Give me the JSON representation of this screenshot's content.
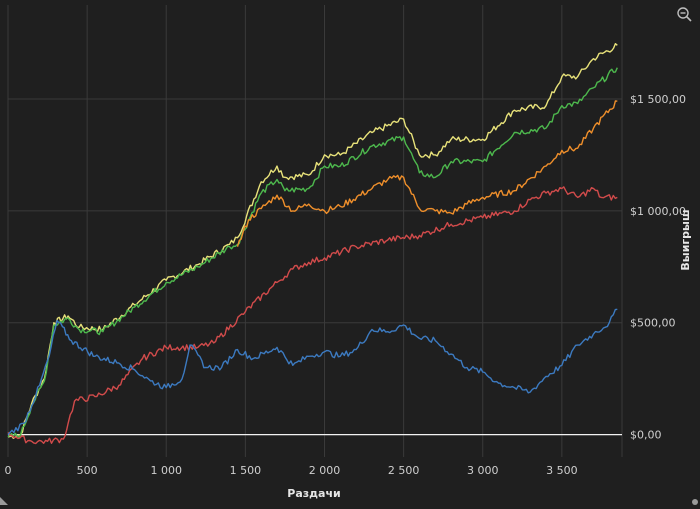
{
  "chart_data": {
    "type": "line",
    "xlabel": "Раздачи",
    "ylabel": "Выигрыш",
    "xlim": [
      0,
      3880
    ],
    "ylim": [
      -100,
      1920
    ],
    "x_ticks": [
      0,
      500,
      1000,
      1500,
      2000,
      2500,
      3000,
      3500
    ],
    "x_tick_labels": [
      "0",
      "500",
      "1 000",
      "1 500",
      "2 000",
      "2 500",
      "3 000",
      "3 500"
    ],
    "y_ticks": [
      0,
      500,
      1000,
      1500
    ],
    "y_tick_labels": [
      "$0,00",
      "$500,00",
      "$1 000,00",
      "$1 500,00"
    ],
    "grid": true,
    "zero_line": true,
    "series": [
      {
        "color": "#e8e27a",
        "values": [
          [
            0,
            -10
          ],
          [
            80,
            0
          ],
          [
            150,
            140
          ],
          [
            230,
            250
          ],
          [
            290,
            500
          ],
          [
            380,
            530
          ],
          [
            450,
            480
          ],
          [
            600,
            470
          ],
          [
            800,
            580
          ],
          [
            1000,
            690
          ],
          [
            1200,
            760
          ],
          [
            1400,
            850
          ],
          [
            1450,
            880
          ],
          [
            1600,
            1130
          ],
          [
            1700,
            1200
          ],
          [
            1750,
            1150
          ],
          [
            1900,
            1160
          ],
          [
            2000,
            1250
          ],
          [
            2100,
            1250
          ],
          [
            2300,
            1350
          ],
          [
            2500,
            1410
          ],
          [
            2600,
            1250
          ],
          [
            2700,
            1250
          ],
          [
            2800,
            1320
          ],
          [
            3000,
            1320
          ],
          [
            3200,
            1450
          ],
          [
            3400,
            1470
          ],
          [
            3500,
            1600
          ],
          [
            3600,
            1600
          ],
          [
            3700,
            1680
          ],
          [
            3850,
            1740
          ]
        ]
      },
      {
        "color": "#4db84d",
        "values": [
          [
            0,
            -10
          ],
          [
            80,
            0
          ],
          [
            150,
            130
          ],
          [
            230,
            240
          ],
          [
            290,
            490
          ],
          [
            380,
            520
          ],
          [
            450,
            470
          ],
          [
            600,
            460
          ],
          [
            800,
            570
          ],
          [
            1000,
            680
          ],
          [
            1200,
            750
          ],
          [
            1400,
            840
          ],
          [
            1450,
            850
          ],
          [
            1600,
            1080
          ],
          [
            1700,
            1140
          ],
          [
            1750,
            1090
          ],
          [
            1900,
            1100
          ],
          [
            2000,
            1200
          ],
          [
            2100,
            1200
          ],
          [
            2300,
            1290
          ],
          [
            2500,
            1330
          ],
          [
            2600,
            1170
          ],
          [
            2700,
            1150
          ],
          [
            2800,
            1220
          ],
          [
            3000,
            1220
          ],
          [
            3200,
            1350
          ],
          [
            3400,
            1370
          ],
          [
            3500,
            1470
          ],
          [
            3600,
            1480
          ],
          [
            3700,
            1550
          ],
          [
            3850,
            1640
          ]
        ]
      },
      {
        "color": "#ef8f2b",
        "values": [
          [
            1450,
            840
          ],
          [
            1520,
            960
          ],
          [
            1600,
            1010
          ],
          [
            1700,
            1070
          ],
          [
            1800,
            1000
          ],
          [
            1900,
            1030
          ],
          [
            2000,
            1000
          ],
          [
            2100,
            1020
          ],
          [
            2300,
            1100
          ],
          [
            2400,
            1140
          ],
          [
            2500,
            1150
          ],
          [
            2600,
            1010
          ],
          [
            2700,
            1000
          ],
          [
            2800,
            990
          ],
          [
            2900,
            1030
          ],
          [
            3000,
            1060
          ],
          [
            3200,
            1090
          ],
          [
            3400,
            1200
          ],
          [
            3500,
            1270
          ],
          [
            3600,
            1280
          ],
          [
            3700,
            1370
          ],
          [
            3850,
            1490
          ]
        ]
      },
      {
        "color": "#d14b4b",
        "values": [
          [
            0,
            10
          ],
          [
            50,
            -10
          ],
          [
            150,
            -30
          ],
          [
            250,
            -30
          ],
          [
            350,
            -20
          ],
          [
            380,
            50
          ],
          [
            420,
            150
          ],
          [
            550,
            170
          ],
          [
            700,
            220
          ],
          [
            850,
            340
          ],
          [
            1000,
            390
          ],
          [
            1200,
            390
          ],
          [
            1300,
            410
          ],
          [
            1500,
            550
          ],
          [
            1700,
            680
          ],
          [
            1800,
            740
          ],
          [
            1900,
            770
          ],
          [
            2000,
            790
          ],
          [
            2200,
            840
          ],
          [
            2400,
            870
          ],
          [
            2600,
            890
          ],
          [
            2800,
            940
          ],
          [
            3000,
            970
          ],
          [
            3200,
            1000
          ],
          [
            3300,
            1050
          ],
          [
            3400,
            1080
          ],
          [
            3500,
            1100
          ],
          [
            3600,
            1060
          ],
          [
            3700,
            1100
          ],
          [
            3750,
            1060
          ],
          [
            3850,
            1060
          ]
        ]
      },
      {
        "color": "#3c7ac0",
        "values": [
          [
            0,
            0
          ],
          [
            100,
            50
          ],
          [
            200,
            220
          ],
          [
            260,
            350
          ],
          [
            310,
            510
          ],
          [
            400,
            420
          ],
          [
            550,
            350
          ],
          [
            700,
            320
          ],
          [
            800,
            290
          ],
          [
            900,
            240
          ],
          [
            1000,
            210
          ],
          [
            1100,
            250
          ],
          [
            1150,
            400
          ],
          [
            1250,
            300
          ],
          [
            1350,
            300
          ],
          [
            1450,
            380
          ],
          [
            1550,
            340
          ],
          [
            1700,
            390
          ],
          [
            1800,
            310
          ],
          [
            1900,
            350
          ],
          [
            2000,
            370
          ],
          [
            2100,
            350
          ],
          [
            2200,
            380
          ],
          [
            2300,
            470
          ],
          [
            2400,
            460
          ],
          [
            2500,
            490
          ],
          [
            2600,
            430
          ],
          [
            2700,
            420
          ],
          [
            2800,
            360
          ],
          [
            2900,
            300
          ],
          [
            3000,
            280
          ],
          [
            3100,
            230
          ],
          [
            3200,
            210
          ],
          [
            3300,
            190
          ],
          [
            3400,
            260
          ],
          [
            3500,
            310
          ],
          [
            3600,
            400
          ],
          [
            3700,
            450
          ],
          [
            3800,
            500
          ],
          [
            3850,
            560
          ]
        ]
      }
    ]
  },
  "icons": {
    "zoom": "zoom-out-icon"
  }
}
